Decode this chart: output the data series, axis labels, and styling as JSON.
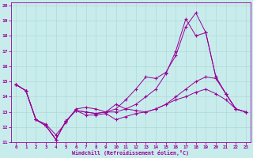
{
  "xlabel": "Windchill (Refroidissement éolien,°C)",
  "bg_color": "#c8ecec",
  "line_color": "#990099",
  "grid_color": "#b0d8d8",
  "xlim": [
    -0.5,
    23.5
  ],
  "ylim": [
    11,
    20.2
  ],
  "xticks": [
    0,
    1,
    2,
    3,
    4,
    5,
    6,
    7,
    8,
    9,
    10,
    11,
    12,
    13,
    14,
    15,
    16,
    17,
    18,
    19,
    20,
    21,
    22,
    23
  ],
  "yticks": [
    11,
    12,
    13,
    14,
    15,
    16,
    17,
    18,
    19,
    20
  ],
  "line1_y": [
    14.8,
    14.4,
    12.5,
    12.2,
    11.5,
    12.3,
    13.2,
    13.3,
    13.2,
    13.0,
    13.5,
    13.2,
    13.1,
    13.0,
    13.2,
    13.5,
    13.8,
    14.0,
    14.3,
    14.5,
    14.2,
    13.8,
    13.2,
    13.0
  ],
  "line2_y": [
    14.8,
    14.4,
    12.5,
    12.1,
    11.2,
    12.4,
    13.1,
    13.0,
    12.9,
    13.0,
    13.2,
    13.8,
    14.5,
    15.3,
    15.2,
    15.6,
    16.7,
    18.6,
    19.5,
    18.2,
    15.3,
    14.2,
    13.2,
    13.0
  ],
  "line3_y": [
    14.8,
    14.4,
    12.5,
    12.1,
    11.2,
    12.4,
    13.1,
    13.0,
    12.9,
    13.0,
    13.0,
    13.2,
    13.5,
    14.0,
    14.5,
    15.5,
    17.0,
    19.1,
    18.0,
    18.2,
    15.3,
    14.2,
    13.2,
    13.0
  ],
  "line4_y": [
    14.8,
    14.4,
    12.5,
    12.1,
    11.2,
    12.4,
    13.1,
    12.8,
    12.8,
    12.9,
    12.5,
    12.7,
    12.9,
    13.0,
    13.2,
    13.5,
    14.0,
    14.5,
    15.0,
    15.3,
    15.2,
    14.2,
    13.2,
    13.0
  ]
}
